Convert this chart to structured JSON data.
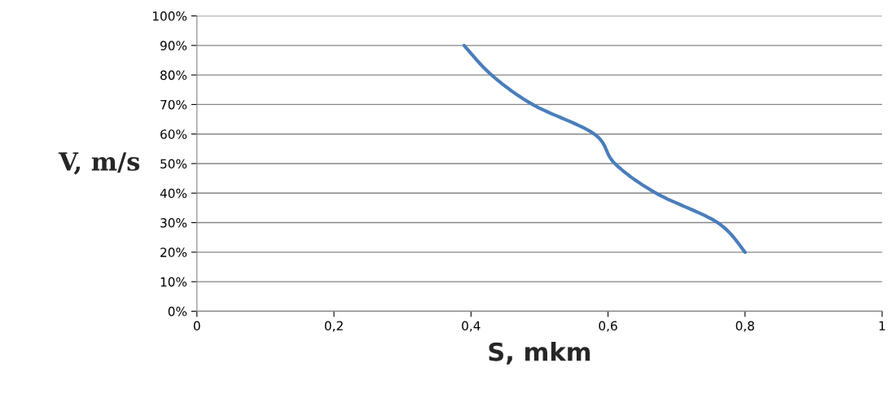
{
  "chart_data": {
    "type": "line",
    "xlabel": "S, mkm",
    "ylabel": "V, m/s",
    "series": [
      {
        "color": "#4a7ebb",
        "x": [
          0.39,
          0.43,
          0.49,
          0.58,
          0.61,
          0.67,
          0.76,
          0.8
        ],
        "values": [
          90,
          80,
          70,
          60,
          50,
          40,
          30,
          20
        ]
      }
    ],
    "xlim": [
      0,
      1
    ],
    "ylim": [
      0,
      100
    ],
    "xticks": [
      0,
      {
        "value": 0.2,
        "label": "0,2"
      },
      {
        "value": 0.4,
        "label": "0,4"
      },
      {
        "value": 0.6,
        "label": "0,6"
      },
      {
        "value": 0.8,
        "label": "0,8"
      },
      1
    ],
    "yticks": [
      {
        "value": 0,
        "label": "0%"
      },
      {
        "value": 10,
        "label": "10%"
      },
      {
        "value": 20,
        "label": "20%"
      },
      {
        "value": 30,
        "label": "30%"
      },
      {
        "value": 40,
        "label": "40%"
      },
      {
        "value": 50,
        "label": "50%"
      },
      {
        "value": 60,
        "label": "60%"
      },
      {
        "value": 70,
        "label": "70%"
      },
      {
        "value": 80,
        "label": "80%"
      },
      {
        "value": 90,
        "label": "90%"
      },
      {
        "value": 100,
        "label": "100%"
      }
    ],
    "grid": "y",
    "line_style": "solid",
    "marker": "none"
  }
}
